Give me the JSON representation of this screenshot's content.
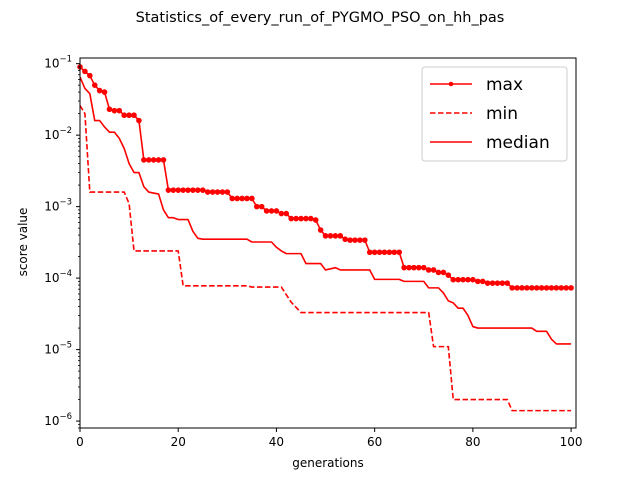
{
  "chart_data": {
    "type": "line",
    "title": "Statistics_of_every_run_of_PYGMO_PSO_on_hh_pas",
    "xlabel": "generations",
    "ylabel": "score value",
    "xlim": [
      0,
      101
    ],
    "ylim": [
      8e-07,
      0.12
    ],
    "yscale": "log",
    "grid": false,
    "legend_position": "top-right",
    "x_ticks": [
      0,
      20,
      40,
      60,
      80,
      100
    ],
    "x_tick_labels": [
      "0",
      "20",
      "40",
      "60",
      "80",
      "100"
    ],
    "y_ticks": [
      1e-06,
      1e-05,
      0.0001,
      0.001,
      0.01,
      0.1
    ],
    "y_tick_labels": [
      {
        "base": "10",
        "exp": "−6"
      },
      {
        "base": "10",
        "exp": "−5"
      },
      {
        "base": "10",
        "exp": "−4"
      },
      {
        "base": "10",
        "exp": "−3"
      },
      {
        "base": "10",
        "exp": "−2"
      },
      {
        "base": "10",
        "exp": "−1"
      }
    ],
    "series": [
      {
        "name": "max",
        "color": "#ff0000",
        "style": "solid-marker",
        "points": [
          [
            0,
            0.09
          ],
          [
            1,
            0.078
          ],
          [
            2,
            0.068
          ],
          [
            3,
            0.05
          ],
          [
            4,
            0.042
          ],
          [
            5,
            0.04
          ],
          [
            6,
            0.023
          ],
          [
            7,
            0.022
          ],
          [
            8,
            0.022
          ],
          [
            9,
            0.019
          ],
          [
            10,
            0.019
          ],
          [
            11,
            0.019
          ],
          [
            12,
            0.016
          ],
          [
            13,
            0.0045
          ],
          [
            14,
            0.0045
          ],
          [
            15,
            0.0045
          ],
          [
            16,
            0.0045
          ],
          [
            17,
            0.0045
          ],
          [
            18,
            0.0017
          ],
          [
            19,
            0.0017
          ],
          [
            20,
            0.0017
          ],
          [
            21,
            0.0017
          ],
          [
            22,
            0.0017
          ],
          [
            23,
            0.0017
          ],
          [
            24,
            0.0017
          ],
          [
            25,
            0.0017
          ],
          [
            26,
            0.0016
          ],
          [
            27,
            0.0016
          ],
          [
            28,
            0.0016
          ],
          [
            29,
            0.0016
          ],
          [
            30,
            0.0016
          ],
          [
            31,
            0.0013
          ],
          [
            32,
            0.0013
          ],
          [
            33,
            0.0013
          ],
          [
            34,
            0.0013
          ],
          [
            35,
            0.0013
          ],
          [
            36,
            0.001
          ],
          [
            37,
            0.001
          ],
          [
            38,
            0.00087
          ],
          [
            39,
            0.00087
          ],
          [
            40,
            0.00087
          ],
          [
            41,
            0.0008
          ],
          [
            42,
            0.0008
          ],
          [
            43,
            0.00068
          ],
          [
            44,
            0.00068
          ],
          [
            45,
            0.00068
          ],
          [
            46,
            0.00068
          ],
          [
            47,
            0.00068
          ],
          [
            48,
            0.00065
          ],
          [
            49,
            0.00047
          ],
          [
            50,
            0.00039
          ],
          [
            51,
            0.00039
          ],
          [
            52,
            0.00039
          ],
          [
            53,
            0.00039
          ],
          [
            54,
            0.00035
          ],
          [
            55,
            0.00034
          ],
          [
            56,
            0.00034
          ],
          [
            57,
            0.00034
          ],
          [
            58,
            0.00034
          ],
          [
            59,
            0.00023
          ],
          [
            60,
            0.00023
          ],
          [
            61,
            0.00023
          ],
          [
            62,
            0.00023
          ],
          [
            63,
            0.00023
          ],
          [
            64,
            0.00023
          ],
          [
            65,
            0.00023
          ],
          [
            66,
            0.00014
          ],
          [
            67,
            0.00014
          ],
          [
            68,
            0.00014
          ],
          [
            69,
            0.00014
          ],
          [
            70,
            0.00014
          ],
          [
            71,
            0.00013
          ],
          [
            72,
            0.00013
          ],
          [
            73,
            0.00012
          ],
          [
            74,
            0.00012
          ],
          [
            75,
            0.00011
          ],
          [
            76,
            9.5e-05
          ],
          [
            77,
            9.5e-05
          ],
          [
            78,
            9.5e-05
          ],
          [
            79,
            9.5e-05
          ],
          [
            80,
            9.5e-05
          ],
          [
            81,
            9e-05
          ],
          [
            82,
            9e-05
          ],
          [
            83,
            8.5e-05
          ],
          [
            84,
            8.5e-05
          ],
          [
            85,
            8.5e-05
          ],
          [
            86,
            8.5e-05
          ],
          [
            87,
            8.5e-05
          ],
          [
            88,
            7.3e-05
          ],
          [
            89,
            7.3e-05
          ],
          [
            90,
            7.3e-05
          ],
          [
            91,
            7.3e-05
          ],
          [
            92,
            7.3e-05
          ],
          [
            93,
            7.3e-05
          ],
          [
            94,
            7.3e-05
          ],
          [
            95,
            7.3e-05
          ],
          [
            96,
            7.3e-05
          ],
          [
            97,
            7.3e-05
          ],
          [
            98,
            7.3e-05
          ],
          [
            99,
            7.3e-05
          ],
          [
            100,
            7.3e-05
          ]
        ]
      },
      {
        "name": "min",
        "color": "#ff0000",
        "style": "dashed",
        "points": [
          [
            0,
            0.026
          ],
          [
            1,
            0.02
          ],
          [
            2,
            0.0016
          ],
          [
            9,
            0.0016
          ],
          [
            10,
            0.0011
          ],
          [
            11,
            0.00024
          ],
          [
            20,
            0.00024
          ],
          [
            21,
            7.8e-05
          ],
          [
            34,
            7.8e-05
          ],
          [
            35,
            7.5e-05
          ],
          [
            41,
            7.5e-05
          ],
          [
            43,
            4.6e-05
          ],
          [
            45,
            3.3e-05
          ],
          [
            71,
            3.3e-05
          ],
          [
            72,
            1.1e-05
          ],
          [
            75,
            1.1e-05
          ],
          [
            76,
            2e-06
          ],
          [
            87,
            2e-06
          ],
          [
            88,
            1.4e-06
          ],
          [
            100,
            1.4e-06
          ]
        ]
      },
      {
        "name": "median",
        "color": "#ff0000",
        "style": "solid",
        "points": [
          [
            0,
            0.065
          ],
          [
            1,
            0.045
          ],
          [
            2,
            0.038
          ],
          [
            3,
            0.016
          ],
          [
            4,
            0.016
          ],
          [
            5,
            0.013
          ],
          [
            6,
            0.011
          ],
          [
            7,
            0.011
          ],
          [
            8,
            0.009
          ],
          [
            9,
            0.0065
          ],
          [
            10,
            0.004
          ],
          [
            11,
            0.003
          ],
          [
            12,
            0.003
          ],
          [
            13,
            0.0019
          ],
          [
            14,
            0.0016
          ],
          [
            16,
            0.0015
          ],
          [
            17,
            0.0009
          ],
          [
            18,
            0.0007
          ],
          [
            19,
            0.0007
          ],
          [
            20,
            0.00066
          ],
          [
            22,
            0.00066
          ],
          [
            23,
            0.00045
          ],
          [
            24,
            0.00036
          ],
          [
            25,
            0.00035
          ],
          [
            34,
            0.00035
          ],
          [
            35,
            0.00032
          ],
          [
            39,
            0.00032
          ],
          [
            40,
            0.00027
          ],
          [
            41,
            0.00024
          ],
          [
            42,
            0.00022
          ],
          [
            45,
            0.00022
          ],
          [
            46,
            0.00016
          ],
          [
            49,
            0.00016
          ],
          [
            50,
            0.00013
          ],
          [
            52,
            0.00014
          ],
          [
            53,
            0.00013
          ],
          [
            59,
            0.00013
          ],
          [
            60,
            9.6e-05
          ],
          [
            65,
            9.6e-05
          ],
          [
            66,
            9e-05
          ],
          [
            70,
            9e-05
          ],
          [
            71,
            7.3e-05
          ],
          [
            73,
            7.3e-05
          ],
          [
            74,
            6.2e-05
          ],
          [
            75,
            4.8e-05
          ],
          [
            76,
            4.5e-05
          ],
          [
            77,
            3.8e-05
          ],
          [
            78,
            3.8e-05
          ],
          [
            79,
            3e-05
          ],
          [
            80,
            2.1e-05
          ],
          [
            81,
            2e-05
          ],
          [
            92,
            2e-05
          ],
          [
            93,
            1.8e-05
          ],
          [
            95,
            1.8e-05
          ],
          [
            96,
            1.4e-05
          ],
          [
            97,
            1.2e-05
          ],
          [
            100,
            1.2e-05
          ]
        ]
      }
    ]
  }
}
